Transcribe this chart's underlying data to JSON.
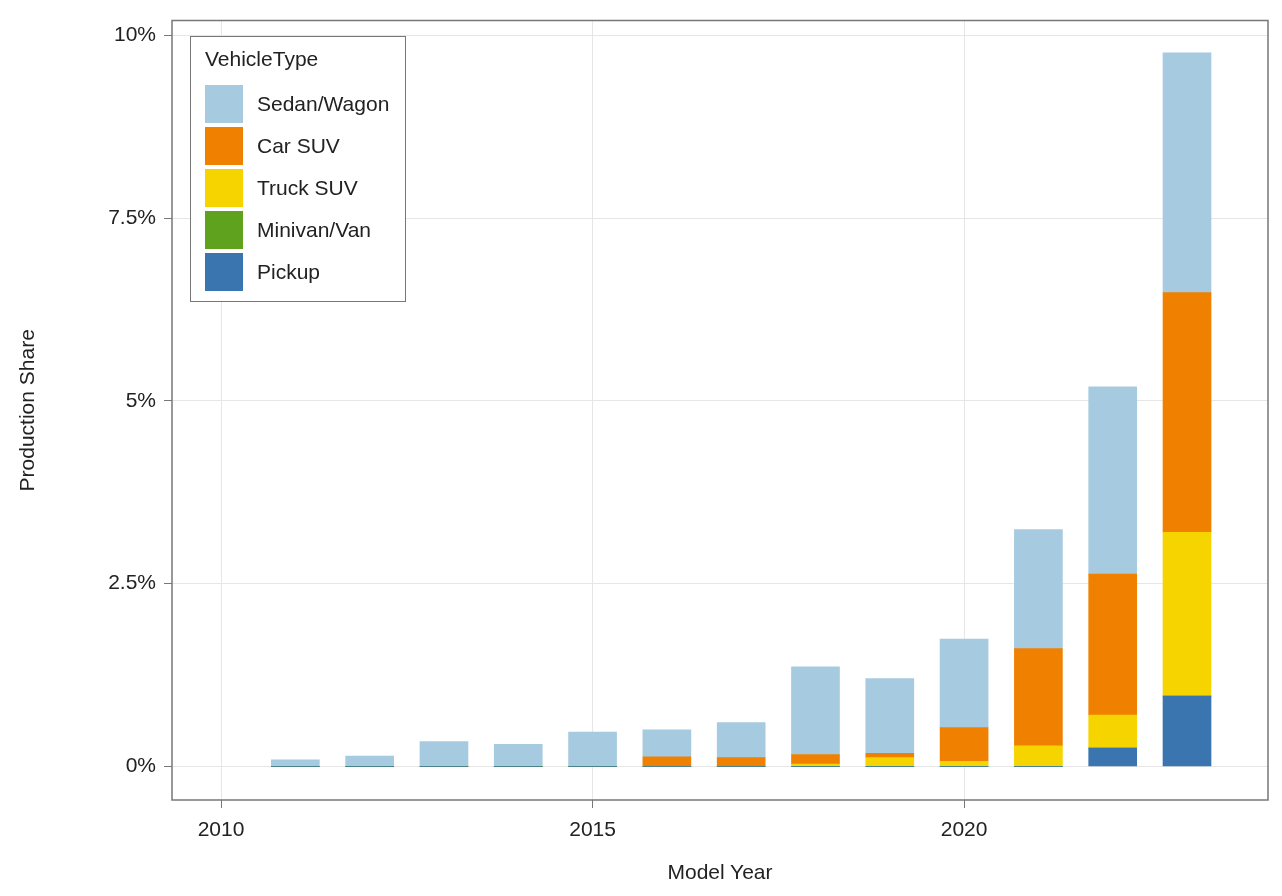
{
  "chart_data": {
    "type": "bar",
    "stacked": true,
    "xlabel": "Model Year",
    "ylabel": "Production Share",
    "legend_title": "VehicleType",
    "legend": "top left",
    "grid": true,
    "x": [
      2011,
      2012,
      2013,
      2014,
      2015,
      2016,
      2017,
      2018,
      2019,
      2020,
      2021,
      2022,
      2023
    ],
    "xlim": [
      2009.34,
      2024.09
    ],
    "xticks": [
      2010,
      2015,
      2020
    ],
    "ylim": [
      -0.46,
      10.2
    ],
    "yticks": [
      {
        "value": 0,
        "label": "0%"
      },
      {
        "value": 2.5,
        "label": "2.5%"
      },
      {
        "value": 5,
        "label": "5%"
      },
      {
        "value": 7.5,
        "label": "7.5%"
      },
      {
        "value": 10,
        "label": "10%"
      }
    ],
    "series": [
      {
        "name": "Pickup",
        "color": "#3a75b0",
        "values": [
          0,
          0,
          0,
          0,
          0,
          0,
          0,
          0,
          0,
          0,
          0,
          0.25,
          0.96
        ]
      },
      {
        "name": "Minivan/Van",
        "color": "#5fa21e",
        "values": [
          0,
          0,
          0,
          0,
          0,
          0,
          0,
          0,
          0,
          0,
          0,
          0,
          0
        ]
      },
      {
        "name": "Truck SUV",
        "color": "#f5d400",
        "values": [
          0,
          0,
          0,
          0,
          0,
          0,
          0,
          0.03,
          0.12,
          0.07,
          0.28,
          0.45,
          2.24
        ]
      },
      {
        "name": "Car SUV",
        "color": "#f08000",
        "values": [
          0,
          0,
          0,
          0,
          0,
          0.13,
          0.12,
          0.13,
          0.06,
          0.46,
          1.33,
          1.93,
          3.28
        ]
      },
      {
        "name": "Sedan/Wagon",
        "color": "#a6cae0",
        "values": [
          0.09,
          0.14,
          0.34,
          0.3,
          0.47,
          0.37,
          0.48,
          1.2,
          1.02,
          1.21,
          1.63,
          2.56,
          3.28
        ]
      }
    ]
  }
}
